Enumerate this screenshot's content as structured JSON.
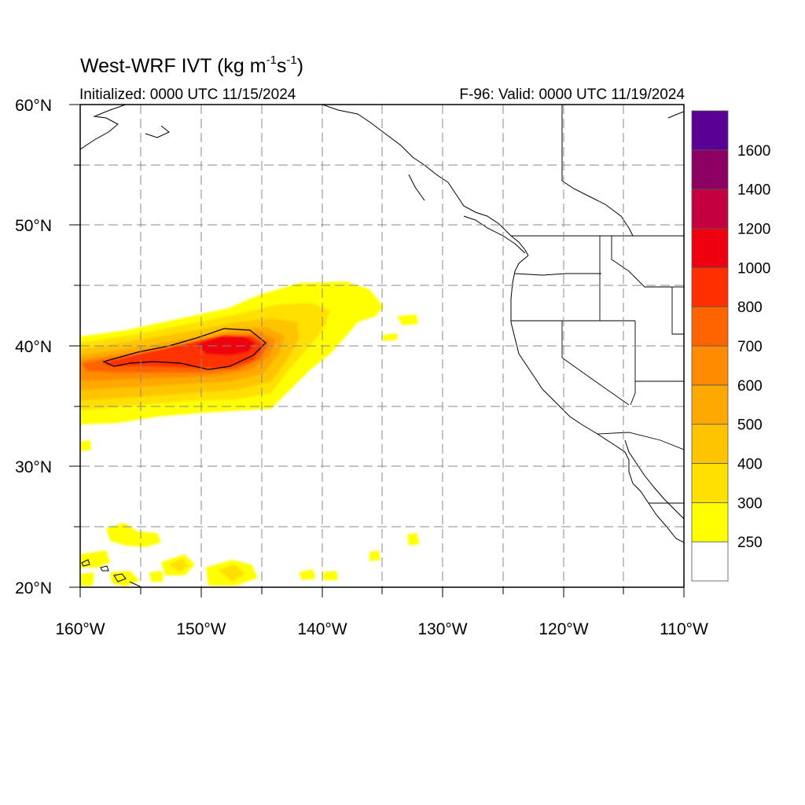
{
  "title": {
    "main": "West-WRF IVT (kg m",
    "sup1": "-1",
    "mid": "s",
    "sup2": "-1",
    "end": ")"
  },
  "subtitle_left": "Initialized: 0000 UTC 11/15/2024",
  "subtitle_right": "F-96: Valid: 0000 UTC 11/19/2024",
  "lon_labels": [
    "160°W",
    "150°W",
    "140°W",
    "130°W",
    "120°W",
    "110°W"
  ],
  "lat_labels": [
    "60°N",
    "50°N",
    "40°N",
    "30°N",
    "20°N"
  ],
  "colorbar": {
    "labels": [
      "250",
      "300",
      "400",
      "500",
      "600",
      "700",
      "800",
      "1000",
      "1200",
      "1400",
      "1600"
    ],
    "colors": [
      "#ffffff",
      "#ffff00",
      "#ffe000",
      "#ffc400",
      "#ffa800",
      "#ff8c00",
      "#ff6400",
      "#ff3000",
      "#ee0010",
      "#c40040",
      "#8c0064",
      "#5a0094"
    ]
  },
  "map_extent": {
    "lon": [
      -160,
      -110
    ],
    "lat": [
      20,
      60
    ]
  }
}
